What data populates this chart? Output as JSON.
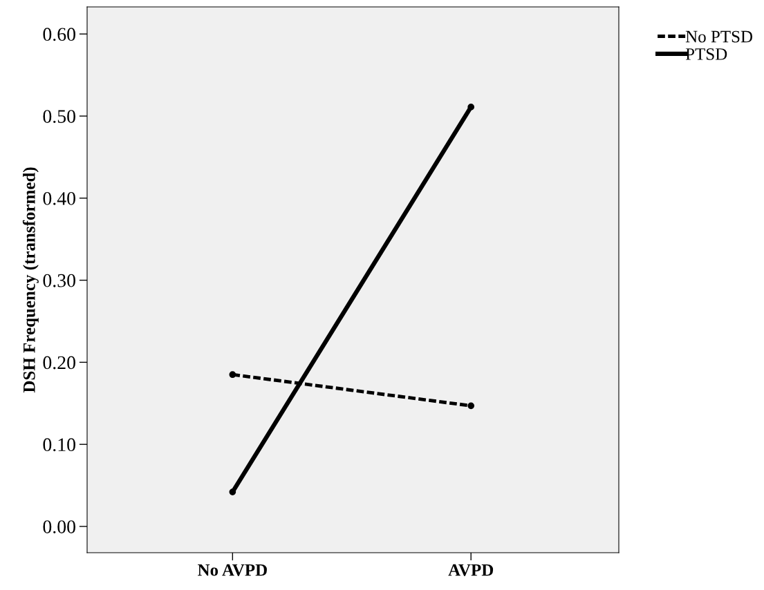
{
  "chart_data": {
    "type": "line",
    "ylabel": "DSH Frequency (transformed)",
    "categories": [
      "No AVPD",
      "AVPD"
    ],
    "series": [
      {
        "name": "No PTSD",
        "color": "#000000",
        "values": [
          0.185,
          0.147
        ],
        "line_style": "dashed"
      },
      {
        "name": "PTSD",
        "color": "#000000",
        "values": [
          0.042,
          0.511
        ],
        "line_style": "solid"
      }
    ],
    "ylim": [
      -0.032,
      0.633
    ],
    "yticks": [
      {
        "value": 0,
        "label": "0.00"
      },
      {
        "value": 0.1,
        "label": "0.10"
      },
      {
        "value": 0.2,
        "label": "0.20"
      },
      {
        "value": 0.3,
        "label": "0.30"
      },
      {
        "value": 0.4,
        "label": "0.40"
      },
      {
        "value": 0.5,
        "label": "0.50"
      },
      {
        "value": 0.6,
        "label": "0.60"
      }
    ],
    "marker": "circle",
    "grid": false,
    "legend": "top right"
  }
}
